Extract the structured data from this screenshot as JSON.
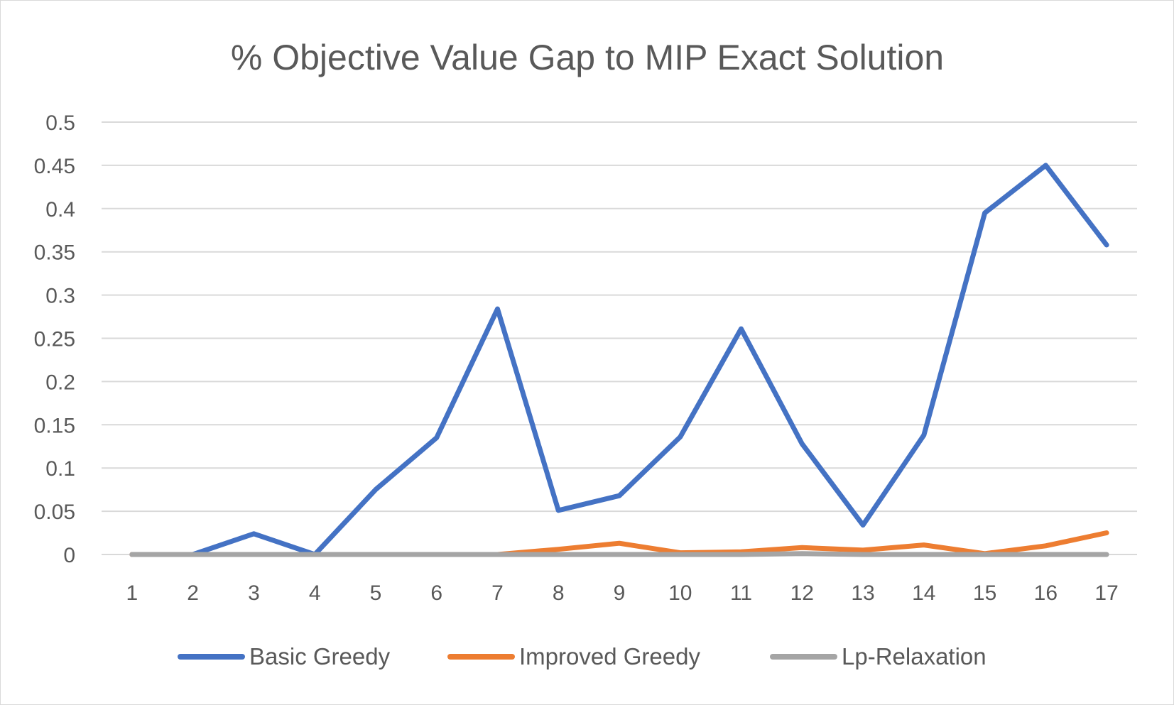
{
  "chart_data": {
    "type": "line",
    "title": "% Objective Value Gap to MIP Exact Solution",
    "xlabel": "",
    "ylabel": "",
    "categories": [
      "1",
      "2",
      "3",
      "4",
      "5",
      "6",
      "7",
      "8",
      "9",
      "10",
      "11",
      "12",
      "13",
      "14",
      "15",
      "16",
      "17"
    ],
    "ylim": [
      0,
      0.5
    ],
    "yticks": [
      "0",
      "0.05",
      "0.1",
      "0.15",
      "0.2",
      "0.25",
      "0.3",
      "0.35",
      "0.4",
      "0.45",
      "0.5"
    ],
    "grid": true,
    "legend_position": "bottom",
    "series": [
      {
        "name": "Basic Greedy",
        "color": "#4472c4",
        "values": [
          0,
          0,
          0.024,
          0,
          0.075,
          0.135,
          0.284,
          0.051,
          0.068,
          0.136,
          0.261,
          0.128,
          0.034,
          0.138,
          0.395,
          0.45,
          0.358
        ]
      },
      {
        "name": "Improved Greedy",
        "color": "#ed7d31",
        "values": [
          0,
          0,
          0,
          0,
          0,
          0,
          0,
          0.006,
          0.013,
          0.002,
          0.003,
          0.008,
          0.005,
          0.011,
          0.001,
          0.01,
          0.025
        ]
      },
      {
        "name": "Lp-Relaxation",
        "color": "#a5a5a5",
        "values": [
          0,
          0,
          0,
          0,
          0,
          0,
          0,
          0,
          0,
          0,
          0,
          0.001,
          0,
          0,
          0,
          0,
          0
        ]
      }
    ]
  }
}
